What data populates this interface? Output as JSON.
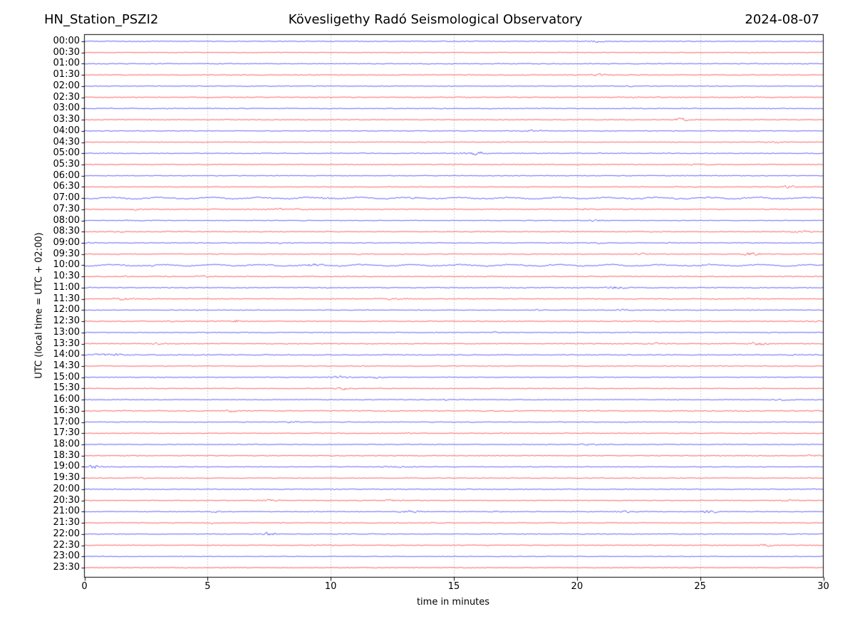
{
  "header": {
    "station": "HN_Station_PSZI2",
    "observatory": "Kövesligethy Radó Seismological Observatory",
    "date": "2024-08-07"
  },
  "chart_data": {
    "type": "line",
    "subtype": "helicorder-seismogram",
    "title": "HN_Station_PSZI2 — Kövesligethy Radó Seismological Observatory — 2024-08-07",
    "xlabel": "time in minutes",
    "ylabel": "UTC (local time = UTC + 02:00)",
    "x_range": [
      0,
      30
    ],
    "x_ticks": [
      0,
      5,
      10,
      15,
      20,
      25,
      30
    ],
    "grid_minutes": [
      5,
      10,
      15,
      20,
      25
    ],
    "grid_on": true,
    "legend": "none",
    "palette": {
      "blue": "#0000ff",
      "red": "#ff0000",
      "grid": "#9a9a9a",
      "axis": "#000000"
    },
    "rows": [
      {
        "label": "00:00",
        "color": "blue",
        "noise": 0.6,
        "events": [
          [
            20.3,
            21.2,
            1.8
          ]
        ]
      },
      {
        "label": "00:30",
        "color": "red",
        "noise": 0.6,
        "events": []
      },
      {
        "label": "01:00",
        "color": "blue",
        "noise": 0.7,
        "events": []
      },
      {
        "label": "01:30",
        "color": "red",
        "noise": 0.6,
        "events": [
          [
            15.5,
            15.7,
            0.9
          ],
          [
            20.5,
            21.4,
            1.8
          ]
        ]
      },
      {
        "label": "02:00",
        "color": "blue",
        "noise": 0.6,
        "events": [
          [
            22.0,
            22.3,
            1.0
          ]
        ]
      },
      {
        "label": "02:30",
        "color": "red",
        "noise": 0.85,
        "events": [
          [
            22.1,
            22.4,
            1.0
          ]
        ]
      },
      {
        "label": "03:00",
        "color": "blue",
        "noise": 0.7,
        "events": []
      },
      {
        "label": "03:30",
        "color": "red",
        "noise": 0.6,
        "events": [
          [
            2.6,
            2.85,
            1.8
          ],
          [
            23.8,
            24.6,
            3.2
          ]
        ]
      },
      {
        "label": "04:00",
        "color": "blue",
        "noise": 0.6,
        "events": [
          [
            17.3,
            18.9,
            1.3
          ]
        ]
      },
      {
        "label": "04:30",
        "color": "red",
        "noise": 0.6,
        "events": [
          [
            27.8,
            28.3,
            2.2
          ]
        ]
      },
      {
        "label": "05:00",
        "color": "blue",
        "noise": 0.65,
        "events": [
          [
            15.0,
            16.6,
            2.6
          ]
        ]
      },
      {
        "label": "05:30",
        "color": "red",
        "noise": 0.6,
        "events": [
          [
            24.2,
            25.6,
            0.9
          ]
        ]
      },
      {
        "label": "06:00",
        "color": "blue",
        "noise": 0.6,
        "events": [
          [
            24.3,
            24.7,
            0.9
          ]
        ]
      },
      {
        "label": "06:30",
        "color": "red",
        "noise": 0.6,
        "events": [
          [
            28.3,
            28.9,
            3.0
          ]
        ]
      },
      {
        "label": "07:00",
        "color": "blue",
        "noise": 1.0,
        "events": [
          [
            9.5,
            10.2,
            1.2
          ],
          [
            13.0,
            13.7,
            1.2
          ]
        ]
      },
      {
        "label": "07:30",
        "color": "red",
        "noise": 0.7,
        "events": [
          [
            1.7,
            2.4,
            2.2
          ],
          [
            6.6,
            9.3,
            1.2
          ],
          [
            19.6,
            21.0,
            1.7
          ]
        ]
      },
      {
        "label": "08:00",
        "color": "blue",
        "noise": 0.6,
        "events": [
          [
            1.7,
            1.9,
            1.2
          ],
          [
            20.4,
            21.2,
            2.0
          ]
        ]
      },
      {
        "label": "08:30",
        "color": "red",
        "noise": 0.7,
        "events": [
          [
            1.0,
            1.8,
            1.3
          ],
          [
            3.2,
            3.5,
            1.4
          ],
          [
            22.9,
            23.7,
            1.2
          ],
          [
            28.2,
            29.9,
            1.3
          ]
        ]
      },
      {
        "label": "09:00",
        "color": "blue",
        "noise": 0.6,
        "events": [
          [
            0.0,
            0.5,
            2.2
          ],
          [
            7.7,
            8.2,
            1.8
          ],
          [
            20.6,
            21.3,
            1.3
          ],
          [
            23.6,
            23.8,
            1.4
          ]
        ]
      },
      {
        "label": "09:30",
        "color": "red",
        "noise": 0.65,
        "events": [
          [
            11.0,
            11.3,
            0.9
          ],
          [
            22.3,
            23.0,
            1.2
          ],
          [
            26.5,
            27.8,
            3.0
          ]
        ]
      },
      {
        "label": "10:00",
        "color": "blue",
        "noise": 0.95,
        "events": [
          [
            2.6,
            2.9,
            1.3
          ],
          [
            8.7,
            10.1,
            1.7
          ],
          [
            24.8,
            25.4,
            1.7
          ]
        ]
      },
      {
        "label": "10:30",
        "color": "red",
        "noise": 0.7,
        "events": [
          [
            1.6,
            1.9,
            1.3
          ],
          [
            4.3,
            5.2,
            1.7
          ]
        ]
      },
      {
        "label": "11:00",
        "color": "blue",
        "noise": 0.7,
        "events": [
          [
            0.0,
            0.4,
            1.7
          ],
          [
            14.75,
            14.95,
            2.6
          ],
          [
            16.9,
            17.2,
            1.2
          ],
          [
            21.0,
            22.3,
            2.0
          ]
        ]
      },
      {
        "label": "11:30",
        "color": "red",
        "noise": 0.7,
        "events": [
          [
            1.0,
            2.3,
            1.7
          ],
          [
            11.6,
            13.7,
            1.0
          ],
          [
            26.7,
            27.1,
            1.3
          ]
        ]
      },
      {
        "label": "12:00",
        "color": "blue",
        "noise": 0.6,
        "events": [
          [
            18.2,
            18.6,
            1.3
          ],
          [
            21.5,
            22.3,
            1.5
          ]
        ]
      },
      {
        "label": "12:30",
        "color": "red",
        "noise": 0.7,
        "events": [
          [
            3.3,
            3.8,
            1.3
          ],
          [
            5.9,
            6.4,
            2.0
          ],
          [
            23.1,
            23.4,
            1.2
          ],
          [
            29.4,
            30.0,
            1.3
          ]
        ]
      },
      {
        "label": "13:00",
        "color": "blue",
        "noise": 0.6,
        "events": [
          [
            14.0,
            14.3,
            1.2
          ],
          [
            16.4,
            16.9,
            1.9
          ],
          [
            27.6,
            27.9,
            1.2
          ]
        ]
      },
      {
        "label": "13:30",
        "color": "red",
        "noise": 0.7,
        "events": [
          [
            2.5,
            3.5,
            1.2
          ],
          [
            22.4,
            23.9,
            1.2
          ],
          [
            26.7,
            28.0,
            2.1
          ]
        ]
      },
      {
        "label": "14:00",
        "color": "blue",
        "noise": 0.75,
        "events": [
          [
            0.0,
            2.3,
            2.0
          ],
          [
            10.9,
            11.1,
            1.3
          ],
          [
            28.4,
            29.0,
            1.2
          ]
        ]
      },
      {
        "label": "14:30",
        "color": "red",
        "noise": 0.55,
        "events": [
          [
            11.1,
            11.4,
            0.8
          ]
        ]
      },
      {
        "label": "15:00",
        "color": "blue",
        "noise": 0.6,
        "events": [
          [
            9.6,
            11.1,
            2.2
          ],
          [
            11.6,
            12.2,
            2.2
          ]
        ]
      },
      {
        "label": "15:30",
        "color": "red",
        "noise": 0.6,
        "events": [
          [
            10.0,
            11.0,
            1.7
          ]
        ]
      },
      {
        "label": "16:00",
        "color": "blue",
        "noise": 0.6,
        "events": [
          [
            0.2,
            0.5,
            2.1
          ],
          [
            14.5,
            14.7,
            2.2
          ],
          [
            24.0,
            24.2,
            1.2
          ],
          [
            27.7,
            28.9,
            1.2
          ]
        ]
      },
      {
        "label": "16:30",
        "color": "red",
        "noise": 0.85,
        "events": [
          [
            5.5,
            6.4,
            1.6
          ],
          [
            10.7,
            10.9,
            1.7
          ],
          [
            18.9,
            19.3,
            1.1
          ]
        ]
      },
      {
        "label": "17:00",
        "color": "blue",
        "noise": 0.6,
        "events": [
          [
            8.1,
            8.8,
            1.9
          ]
        ]
      },
      {
        "label": "17:30",
        "color": "red",
        "noise": 0.6,
        "events": [
          [
            12.8,
            13.6,
            0.9
          ],
          [
            16.9,
            17.3,
            0.9
          ]
        ]
      },
      {
        "label": "18:00",
        "color": "blue",
        "noise": 0.6,
        "events": [
          [
            19.7,
            21.2,
            1.2
          ]
        ]
      },
      {
        "label": "18:30",
        "color": "red",
        "noise": 0.65,
        "events": [
          [
            7.4,
            7.55,
            1.6
          ],
          [
            29.2,
            30.0,
            1.7
          ]
        ]
      },
      {
        "label": "19:00",
        "color": "blue",
        "noise": 0.6,
        "events": [
          [
            0.0,
            0.9,
            3.0
          ],
          [
            11.8,
            13.1,
            1.7
          ]
        ]
      },
      {
        "label": "19:30",
        "color": "red",
        "noise": 0.6,
        "events": [
          [
            1.9,
            2.7,
            1.1
          ]
        ]
      },
      {
        "label": "20:00",
        "color": "blue",
        "noise": 0.65,
        "events": [
          [
            10.0,
            10.3,
            0.9
          ]
        ]
      },
      {
        "label": "20:30",
        "color": "red",
        "noise": 0.6,
        "events": [
          [
            6.8,
            8.1,
            2.1
          ],
          [
            11.1,
            11.3,
            1.3
          ],
          [
            12.1,
            13.1,
            2.1
          ],
          [
            28.1,
            29.1,
            1.5
          ]
        ]
      },
      {
        "label": "21:00",
        "color": "blue",
        "noise": 0.6,
        "events": [
          [
            5.0,
            5.8,
            1.7
          ],
          [
            9.0,
            9.5,
            1.5
          ],
          [
            12.7,
            13.9,
            2.3
          ],
          [
            16.4,
            17.2,
            1.7
          ],
          [
            21.4,
            22.5,
            1.7
          ],
          [
            24.7,
            26.0,
            2.1
          ]
        ]
      },
      {
        "label": "21:30",
        "color": "red",
        "noise": 0.6,
        "events": [
          [
            5.1,
            5.25,
            1.7
          ],
          [
            13.8,
            14.7,
            1.0
          ]
        ]
      },
      {
        "label": "22:00",
        "color": "blue",
        "noise": 0.6,
        "events": [
          [
            7.1,
            7.9,
            3.0
          ],
          [
            11.6,
            11.8,
            1.3
          ]
        ]
      },
      {
        "label": "22:30",
        "color": "red",
        "noise": 0.7,
        "events": [
          [
            27.2,
            28.1,
            1.9
          ]
        ]
      },
      {
        "label": "23:00",
        "color": "blue",
        "noise": 0.55,
        "events": []
      },
      {
        "label": "23:30",
        "color": "red",
        "noise": 0.55,
        "events": []
      }
    ]
  }
}
